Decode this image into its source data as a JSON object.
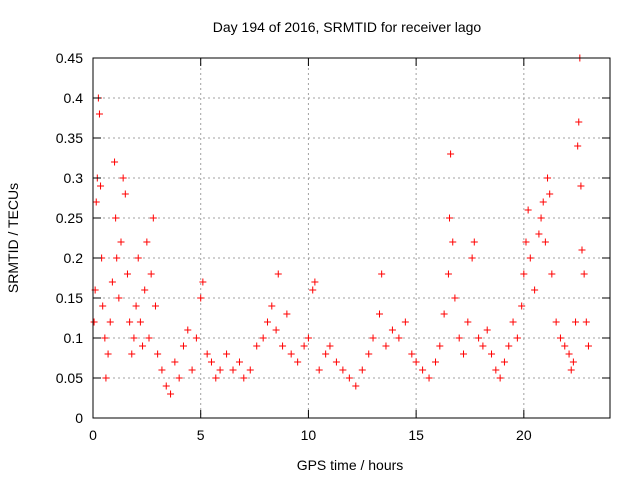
{
  "chart_data": {
    "type": "scatter",
    "title": "Day 194 of 2016, SRMTID for receiver lago",
    "xlabel": "GPS time / hours",
    "ylabel": "SRMTID / TECUs",
    "xlim": [
      0,
      24
    ],
    "ylim": [
      0,
      0.45
    ],
    "xticks": [
      0,
      5,
      10,
      15,
      20
    ],
    "xtick_labels": [
      "0",
      "5",
      "10",
      "15",
      "20"
    ],
    "yticks": [
      0,
      0.05,
      0.1,
      0.15,
      0.2,
      0.25,
      0.3,
      0.35,
      0.4,
      0.45
    ],
    "ytick_labels": [
      "0",
      "0.05",
      "0.1",
      "0.15",
      "0.2",
      "0.25",
      "0.3",
      "0.35",
      "0.4",
      "0.45"
    ],
    "grid": true,
    "marker": "+",
    "color": "#ff0000",
    "series": [
      {
        "name": "SRMTID",
        "points": [
          [
            0.05,
            0.12
          ],
          [
            0.1,
            0.16
          ],
          [
            0.15,
            0.27
          ],
          [
            0.2,
            0.3
          ],
          [
            0.25,
            0.4
          ],
          [
            0.3,
            0.38
          ],
          [
            0.35,
            0.29
          ],
          [
            0.4,
            0.2
          ],
          [
            0.45,
            0.14
          ],
          [
            0.55,
            0.1
          ],
          [
            0.6,
            0.05
          ],
          [
            0.7,
            0.08
          ],
          [
            0.8,
            0.12
          ],
          [
            0.9,
            0.17
          ],
          [
            1.0,
            0.32
          ],
          [
            1.05,
            0.25
          ],
          [
            1.1,
            0.2
          ],
          [
            1.2,
            0.15
          ],
          [
            1.3,
            0.22
          ],
          [
            1.4,
            0.3
          ],
          [
            1.5,
            0.28
          ],
          [
            1.6,
            0.18
          ],
          [
            1.7,
            0.12
          ],
          [
            1.8,
            0.08
          ],
          [
            1.9,
            0.1
          ],
          [
            2.0,
            0.14
          ],
          [
            2.1,
            0.2
          ],
          [
            2.2,
            0.12
          ],
          [
            2.3,
            0.09
          ],
          [
            2.4,
            0.16
          ],
          [
            2.5,
            0.22
          ],
          [
            2.6,
            0.1
          ],
          [
            2.7,
            0.18
          ],
          [
            2.8,
            0.25
          ],
          [
            2.9,
            0.14
          ],
          [
            3.0,
            0.08
          ],
          [
            3.2,
            0.06
          ],
          [
            3.4,
            0.04
          ],
          [
            3.6,
            0.03
          ],
          [
            3.8,
            0.07
          ],
          [
            4.0,
            0.05
          ],
          [
            4.2,
            0.09
          ],
          [
            4.4,
            0.11
          ],
          [
            4.6,
            0.06
          ],
          [
            4.8,
            0.1
          ],
          [
            5.0,
            0.15
          ],
          [
            5.1,
            0.17
          ],
          [
            5.3,
            0.08
          ],
          [
            5.5,
            0.07
          ],
          [
            5.7,
            0.05
          ],
          [
            5.9,
            0.06
          ],
          [
            6.2,
            0.08
          ],
          [
            6.5,
            0.06
          ],
          [
            6.8,
            0.07
          ],
          [
            7.0,
            0.05
          ],
          [
            7.3,
            0.06
          ],
          [
            7.6,
            0.09
          ],
          [
            7.9,
            0.1
          ],
          [
            8.1,
            0.12
          ],
          [
            8.3,
            0.14
          ],
          [
            8.5,
            0.11
          ],
          [
            8.6,
            0.18
          ],
          [
            8.8,
            0.09
          ],
          [
            9.0,
            0.13
          ],
          [
            9.2,
            0.08
          ],
          [
            9.5,
            0.07
          ],
          [
            9.8,
            0.09
          ],
          [
            10.0,
            0.1
          ],
          [
            10.2,
            0.16
          ],
          [
            10.3,
            0.17
          ],
          [
            10.5,
            0.06
          ],
          [
            10.8,
            0.08
          ],
          [
            11.0,
            0.09
          ],
          [
            11.3,
            0.07
          ],
          [
            11.6,
            0.06
          ],
          [
            11.9,
            0.05
          ],
          [
            12.2,
            0.04
          ],
          [
            12.5,
            0.06
          ],
          [
            12.8,
            0.08
          ],
          [
            13.0,
            0.1
          ],
          [
            13.3,
            0.13
          ],
          [
            13.4,
            0.18
          ],
          [
            13.6,
            0.09
          ],
          [
            13.9,
            0.11
          ],
          [
            14.2,
            0.1
          ],
          [
            14.5,
            0.12
          ],
          [
            14.8,
            0.08
          ],
          [
            15.0,
            0.07
          ],
          [
            15.3,
            0.06
          ],
          [
            15.6,
            0.05
          ],
          [
            15.9,
            0.07
          ],
          [
            16.1,
            0.09
          ],
          [
            16.3,
            0.13
          ],
          [
            16.5,
            0.18
          ],
          [
            16.55,
            0.25
          ],
          [
            16.6,
            0.33
          ],
          [
            16.7,
            0.22
          ],
          [
            16.8,
            0.15
          ],
          [
            17.0,
            0.1
          ],
          [
            17.2,
            0.08
          ],
          [
            17.4,
            0.12
          ],
          [
            17.6,
            0.2
          ],
          [
            17.7,
            0.22
          ],
          [
            17.9,
            0.1
          ],
          [
            18.1,
            0.09
          ],
          [
            18.3,
            0.11
          ],
          [
            18.5,
            0.08
          ],
          [
            18.7,
            0.06
          ],
          [
            18.9,
            0.05
          ],
          [
            19.1,
            0.07
          ],
          [
            19.3,
            0.09
          ],
          [
            19.5,
            0.12
          ],
          [
            19.7,
            0.1
          ],
          [
            19.9,
            0.14
          ],
          [
            20.0,
            0.18
          ],
          [
            20.1,
            0.22
          ],
          [
            20.2,
            0.26
          ],
          [
            20.3,
            0.2
          ],
          [
            20.5,
            0.16
          ],
          [
            20.7,
            0.23
          ],
          [
            20.8,
            0.25
          ],
          [
            20.9,
            0.27
          ],
          [
            21.0,
            0.22
          ],
          [
            21.1,
            0.3
          ],
          [
            21.2,
            0.28
          ],
          [
            21.3,
            0.18
          ],
          [
            21.5,
            0.12
          ],
          [
            21.7,
            0.1
          ],
          [
            21.9,
            0.09
          ],
          [
            22.1,
            0.08
          ],
          [
            22.2,
            0.06
          ],
          [
            22.3,
            0.07
          ],
          [
            22.4,
            0.12
          ],
          [
            22.5,
            0.34
          ],
          [
            22.55,
            0.37
          ],
          [
            22.6,
            0.45
          ],
          [
            22.65,
            0.29
          ],
          [
            22.7,
            0.21
          ],
          [
            22.8,
            0.18
          ],
          [
            22.9,
            0.12
          ],
          [
            23.0,
            0.09
          ]
        ]
      }
    ]
  }
}
